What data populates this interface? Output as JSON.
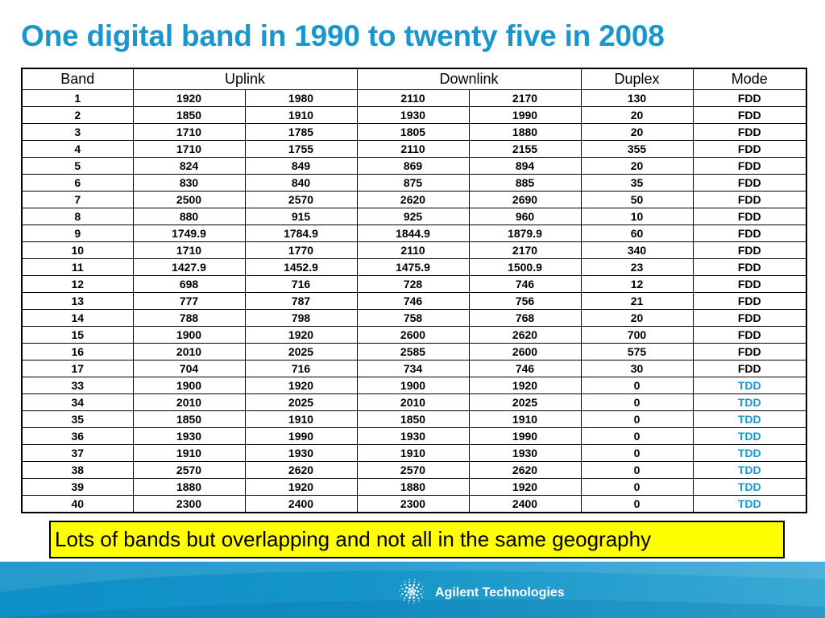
{
  "title": "One digital band in 1990 to twenty five in 2008",
  "table": {
    "headers": {
      "band": "Band",
      "uplink": "Uplink",
      "downlink": "Downlink",
      "duplex": "Duplex",
      "mode": "Mode"
    },
    "rows": [
      [
        "1",
        "1920",
        "1980",
        "2110",
        "2170",
        "130",
        "FDD"
      ],
      [
        "2",
        "1850",
        "1910",
        "1930",
        "1990",
        "20",
        "FDD"
      ],
      [
        "3",
        "1710",
        "1785",
        "1805",
        "1880",
        "20",
        "FDD"
      ],
      [
        "4",
        "1710",
        "1755",
        "2110",
        "2155",
        "355",
        "FDD"
      ],
      [
        "5",
        "824",
        "849",
        "869",
        "894",
        "20",
        "FDD"
      ],
      [
        "6",
        "830",
        "840",
        "875",
        "885",
        "35",
        "FDD"
      ],
      [
        "7",
        "2500",
        "2570",
        "2620",
        "2690",
        "50",
        "FDD"
      ],
      [
        "8",
        "880",
        "915",
        "925",
        "960",
        "10",
        "FDD"
      ],
      [
        "9",
        "1749.9",
        "1784.9",
        "1844.9",
        "1879.9",
        "60",
        "FDD"
      ],
      [
        "10",
        "1710",
        "1770",
        "2110",
        "2170",
        "340",
        "FDD"
      ],
      [
        "11",
        "1427.9",
        "1452.9",
        "1475.9",
        "1500.9",
        "23",
        "FDD"
      ],
      [
        "12",
        "698",
        "716",
        "728",
        "746",
        "12",
        "FDD"
      ],
      [
        "13",
        "777",
        "787",
        "746",
        "756",
        "21",
        "FDD"
      ],
      [
        "14",
        "788",
        "798",
        "758",
        "768",
        "20",
        "FDD"
      ],
      [
        "15",
        "1900",
        "1920",
        "2600",
        "2620",
        "700",
        "FDD"
      ],
      [
        "16",
        "2010",
        "2025",
        "2585",
        "2600",
        "575",
        "FDD"
      ],
      [
        "17",
        "704",
        "716",
        "734",
        "746",
        "30",
        "FDD"
      ],
      [
        "33",
        "1900",
        "1920",
        "1900",
        "1920",
        "0",
        "TDD"
      ],
      [
        "34",
        "2010",
        "2025",
        "2010",
        "2025",
        "0",
        "TDD"
      ],
      [
        "35",
        "1850",
        "1910",
        "1850",
        "1910",
        "0",
        "TDD"
      ],
      [
        "36",
        "1930",
        "1990",
        "1930",
        "1990",
        "0",
        "TDD"
      ],
      [
        "37",
        "1910",
        "1930",
        "1910",
        "1930",
        "0",
        "TDD"
      ],
      [
        "38",
        "2570",
        "2620",
        "2570",
        "2620",
        "0",
        "TDD"
      ],
      [
        "39",
        "1880",
        "1920",
        "1880",
        "1920",
        "0",
        "TDD"
      ],
      [
        "40",
        "2300",
        "2400",
        "2300",
        "2400",
        "0",
        "TDD"
      ]
    ]
  },
  "note": "Lots of bands but overlapping and not all in the same geography",
  "footer": {
    "company": "Agilent Technologies",
    "logo_icon": "agilent-spark-icon"
  },
  "colors": {
    "title": "#1a96cf",
    "tdd": "#1a96cf",
    "note_background": "#ffff00",
    "footer": "#1595c9"
  }
}
